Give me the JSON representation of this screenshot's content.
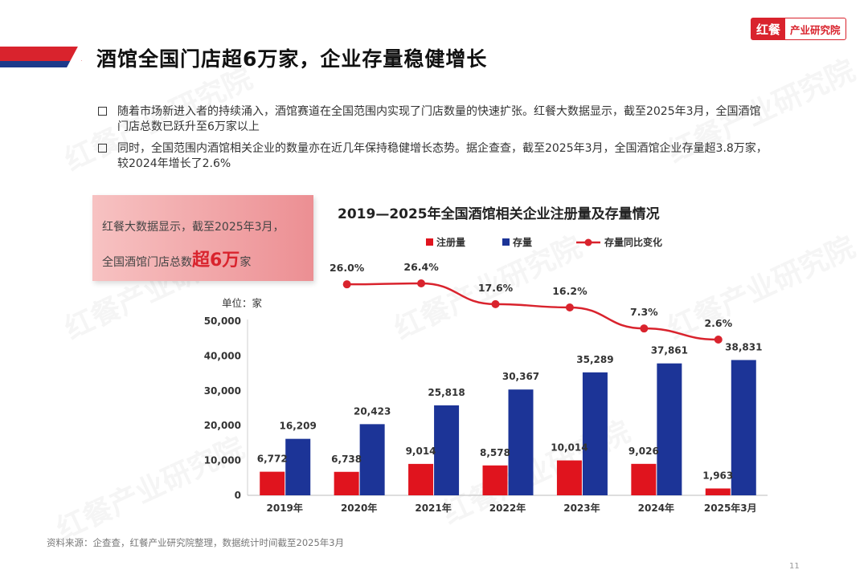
{
  "header": {
    "title": "酒馆全国门店超6万家，企业存量稳健增长",
    "logo_mark": "红餐",
    "logo_text": "产业研究院"
  },
  "bullets": [
    "随着市场新进入者的持续涌入，酒馆赛道在全国范围内实现了门店数量的快速扩张。红餐大数据显示，截至2025年3月，全国酒馆门店总数已跃升至6万家以上",
    "同时，全国范围内酒馆相关企业的数量亦在近几年保持稳健增长态势。据企查查，截至2025年3月，全国酒馆企业存量超3.8万家，较2024年增长了2.6%"
  ],
  "callout": {
    "line1": "红餐大数据显示，截至2025年3月，",
    "line2_prefix": "全国酒馆门店总数",
    "line2_highlight": "超6万",
    "line2_suffix": "家"
  },
  "watermark": "红餐产业研究院",
  "chart_data": {
    "type": "bar",
    "title": "2019—2025年全国酒馆相关企业注册量及存量情况",
    "unit_label": "单位：家",
    "categories": [
      "2019年",
      "2020年",
      "2021年",
      "2022年",
      "2023年",
      "2024年",
      "2025年3月"
    ],
    "series": [
      {
        "name": "注册量",
        "color": "#e0141e",
        "values": [
          6772,
          6738,
          9014,
          8578,
          10014,
          9026,
          1963
        ],
        "labels": [
          "6,772",
          "6,738",
          "9,014",
          "8,578",
          "10,014",
          "9,026",
          "1,963"
        ]
      },
      {
        "name": "存量",
        "color": "#1c3497",
        "values": [
          16209,
          20423,
          25818,
          30367,
          35289,
          37861,
          38831
        ],
        "labels": [
          "16,209",
          "20,423",
          "25,818",
          "30,367",
          "35,289",
          "37,861",
          "38,831"
        ]
      }
    ],
    "line_series": {
      "name": "存量同比变化",
      "color": "#d9232d",
      "categories": [
        "2020年",
        "2021年",
        "2022年",
        "2023年",
        "2024年",
        "2025年3月"
      ],
      "values": [
        26.0,
        26.4,
        17.6,
        16.2,
        7.3,
        2.6
      ],
      "labels": [
        "26.0%",
        "26.4%",
        "17.6%",
        "16.2%",
        "7.3%",
        "2.6%"
      ]
    },
    "y_ticks": [
      "0",
      "10,000",
      "20,000",
      "30,000",
      "40,000",
      "50,000"
    ],
    "ylim": [
      0,
      50000
    ],
    "legend_position": "top"
  },
  "footer": {
    "source": "资料来源：企查查，红餐产业研究院整理，数据统计时间截至2025年3月",
    "page_number": "11"
  }
}
